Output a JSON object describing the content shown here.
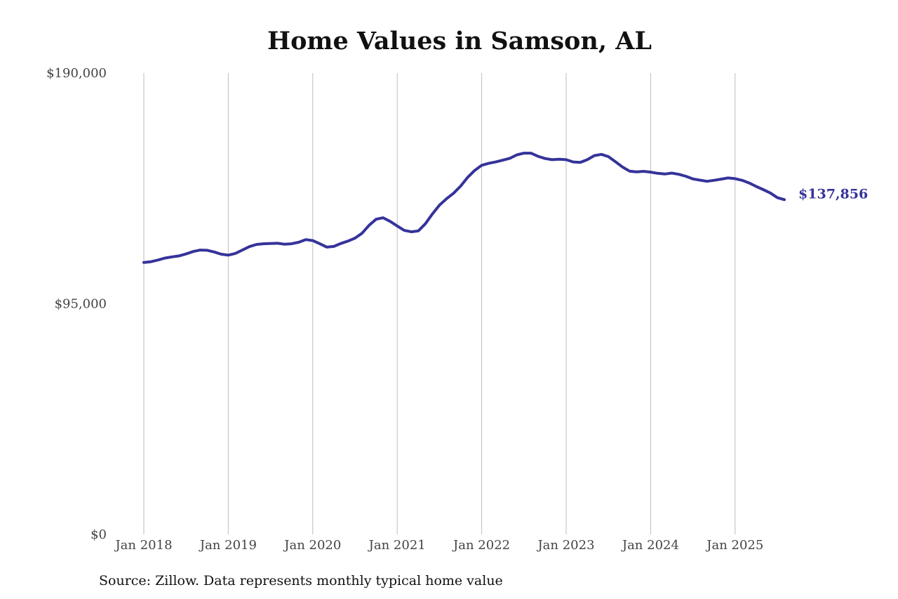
{
  "chart_data": {
    "type": "line",
    "title": "Home Values in Samson, AL",
    "source": "Source: Zillow. Data represents monthly typical home value",
    "xlabel": "",
    "ylabel": "",
    "ylim": [
      0,
      190000
    ],
    "y_ticks": [
      {
        "value": 0,
        "label": "$0"
      },
      {
        "value": 95000,
        "label": "$95,000"
      },
      {
        "value": 190000,
        "label": "$190,000"
      }
    ],
    "x_ticks": [
      {
        "date": "2018-01",
        "label": "Jan 2018"
      },
      {
        "date": "2019-01",
        "label": "Jan 2019"
      },
      {
        "date": "2020-01",
        "label": "Jan 2020"
      },
      {
        "date": "2021-01",
        "label": "Jan 2021"
      },
      {
        "date": "2022-01",
        "label": "Jan 2022"
      },
      {
        "date": "2023-01",
        "label": "Jan 2023"
      },
      {
        "date": "2024-01",
        "label": "Jan 2024"
      },
      {
        "date": "2025-01",
        "label": "Jan 2025"
      }
    ],
    "grid": "vertical",
    "line_color": "#35339a",
    "end_label": "$137,856",
    "series": [
      {
        "points": [
          [
            "2018-01",
            112000
          ],
          [
            "2018-02",
            112300
          ],
          [
            "2018-03",
            113000
          ],
          [
            "2018-04",
            113800
          ],
          [
            "2018-05",
            114300
          ],
          [
            "2018-06",
            114700
          ],
          [
            "2018-07",
            115500
          ],
          [
            "2018-08",
            116500
          ],
          [
            "2018-09",
            117100
          ],
          [
            "2018-10",
            117000
          ],
          [
            "2018-11",
            116300
          ],
          [
            "2018-12",
            115400
          ],
          [
            "2019-01",
            115000
          ],
          [
            "2019-02",
            115700
          ],
          [
            "2019-03",
            117100
          ],
          [
            "2019-04",
            118500
          ],
          [
            "2019-05",
            119400
          ],
          [
            "2019-06",
            119700
          ],
          [
            "2019-07",
            119800
          ],
          [
            "2019-08",
            119900
          ],
          [
            "2019-09",
            119500
          ],
          [
            "2019-10",
            119700
          ],
          [
            "2019-11",
            120300
          ],
          [
            "2019-12",
            121400
          ],
          [
            "2020-01",
            121000
          ],
          [
            "2020-02",
            119700
          ],
          [
            "2020-03",
            118300
          ],
          [
            "2020-04",
            118600
          ],
          [
            "2020-05",
            119800
          ],
          [
            "2020-06",
            120800
          ],
          [
            "2020-07",
            122000
          ],
          [
            "2020-08",
            124000
          ],
          [
            "2020-09",
            127300
          ],
          [
            "2020-10",
            129800
          ],
          [
            "2020-11",
            130400
          ],
          [
            "2020-12",
            128900
          ],
          [
            "2021-01",
            127000
          ],
          [
            "2021-02",
            125200
          ],
          [
            "2021-03",
            124600
          ],
          [
            "2021-04",
            125000
          ],
          [
            "2021-05",
            127900
          ],
          [
            "2021-06",
            132000
          ],
          [
            "2021-07",
            135600
          ],
          [
            "2021-08",
            138200
          ],
          [
            "2021-09",
            140500
          ],
          [
            "2021-10",
            143400
          ],
          [
            "2021-11",
            147000
          ],
          [
            "2021-12",
            149900
          ],
          [
            "2022-01",
            152000
          ],
          [
            "2022-02",
            152800
          ],
          [
            "2022-03",
            153400
          ],
          [
            "2022-04",
            154100
          ],
          [
            "2022-05",
            154900
          ],
          [
            "2022-06",
            156300
          ],
          [
            "2022-07",
            157000
          ],
          [
            "2022-08",
            157000
          ],
          [
            "2022-09",
            155700
          ],
          [
            "2022-10",
            154800
          ],
          [
            "2022-11",
            154300
          ],
          [
            "2022-12",
            154500
          ],
          [
            "2023-01",
            154300
          ],
          [
            "2023-02",
            153400
          ],
          [
            "2023-03",
            153200
          ],
          [
            "2023-04",
            154300
          ],
          [
            "2023-05",
            156000
          ],
          [
            "2023-06",
            156500
          ],
          [
            "2023-07",
            155600
          ],
          [
            "2023-08",
            153500
          ],
          [
            "2023-09",
            151300
          ],
          [
            "2023-10",
            149600
          ],
          [
            "2023-11",
            149300
          ],
          [
            "2023-12",
            149500
          ],
          [
            "2024-01",
            149200
          ],
          [
            "2024-02",
            148700
          ],
          [
            "2024-03",
            148400
          ],
          [
            "2024-04",
            148800
          ],
          [
            "2024-05",
            148300
          ],
          [
            "2024-06",
            147500
          ],
          [
            "2024-07",
            146400
          ],
          [
            "2024-08",
            145900
          ],
          [
            "2024-09",
            145400
          ],
          [
            "2024-10",
            145800
          ],
          [
            "2024-11",
            146300
          ],
          [
            "2024-12",
            146800
          ],
          [
            "2025-01",
            146500
          ],
          [
            "2025-02",
            145800
          ],
          [
            "2025-03",
            144700
          ],
          [
            "2025-04",
            143300
          ],
          [
            "2025-05",
            142000
          ],
          [
            "2025-06",
            140600
          ],
          [
            "2025-07",
            138700
          ],
          [
            "2025-08",
            137856
          ]
        ]
      }
    ]
  }
}
